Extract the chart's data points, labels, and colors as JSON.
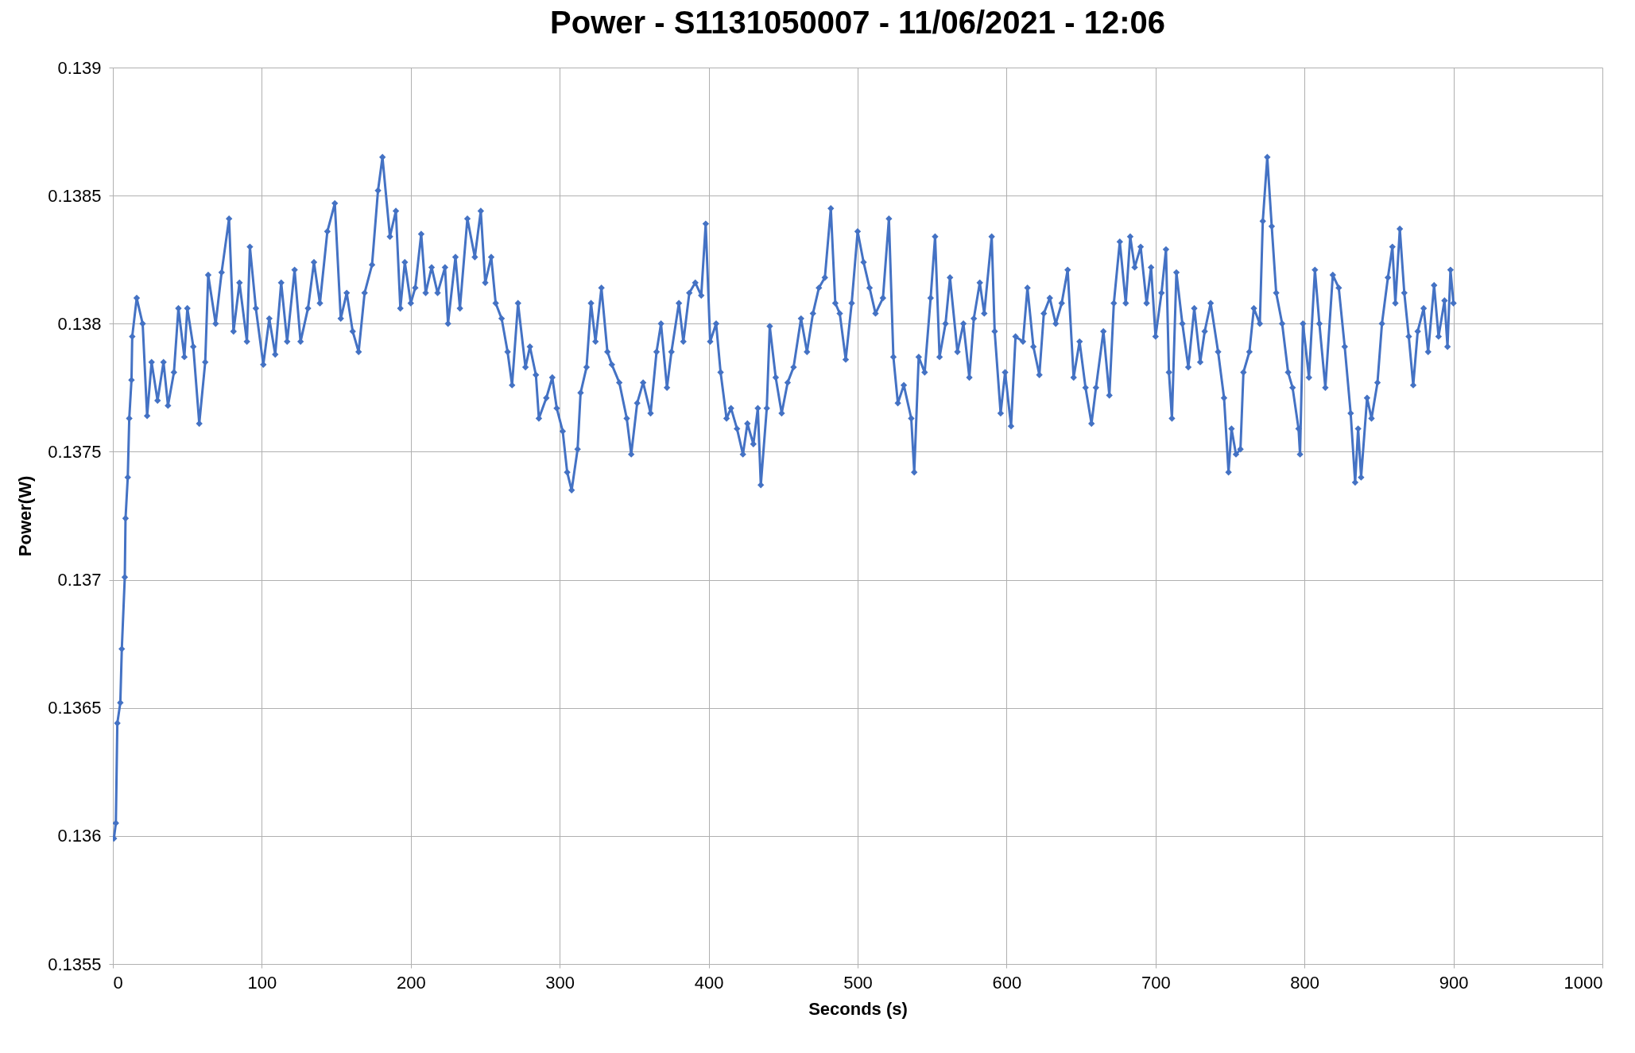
{
  "chart_data": {
    "type": "line",
    "title": "Power - S1131050007 - 11/06/2021 - 12:06",
    "xlabel": "Seconds (s)",
    "ylabel": "Power(W)",
    "x": [
      0.7,
      2,
      3,
      5,
      6,
      8,
      8.5,
      10,
      11,
      12.5,
      13,
      16,
      20,
      23,
      26,
      30,
      34,
      37,
      41,
      44,
      48,
      50,
      54,
      58,
      62,
      64,
      69,
      73,
      78,
      81,
      85,
      90,
      92,
      96,
      101,
      105,
      109,
      113,
      117,
      122,
      126,
      131,
      135,
      139,
      144,
      149,
      153,
      157,
      161,
      165,
      169,
      174,
      178,
      181,
      186,
      190,
      193,
      196,
      200,
      203,
      207,
      210,
      214,
      218,
      223,
      225,
      230,
      233,
      238,
      243,
      247,
      250,
      254,
      257,
      261,
      265,
      268,
      272,
      277,
      280,
      284,
      286,
      291,
      295,
      298,
      302,
      305,
      308,
      312,
      314,
      318,
      321,
      324,
      328,
      332,
      335,
      340,
      345,
      348,
      352,
      356,
      361,
      365,
      368,
      372,
      375,
      380,
      383,
      387,
      391,
      395,
      398,
      401,
      405,
      408,
      412,
      415,
      419,
      423,
      426,
      430,
      433,
      435,
      439,
      441,
      445,
      449,
      453,
      457,
      462,
      466,
      470,
      474,
      478,
      482,
      485,
      488,
      492,
      496,
      500,
      504,
      508,
      512,
      517,
      521,
      524,
      527,
      531,
      536,
      538,
      541,
      545,
      549,
      552,
      555,
      559,
      562,
      567,
      571,
      575,
      578,
      582,
      585,
      590,
      592,
      596,
      599,
      603,
      606,
      611,
      614,
      618,
      622,
      625,
      629,
      633,
      637,
      641,
      645,
      649,
      653,
      657,
      660,
      665,
      669,
      672,
      676,
      680,
      683,
      686,
      690,
      694,
      697,
      700,
      704,
      707,
      709,
      711,
      714,
      718,
      722,
      726,
      730,
      733,
      737,
      742,
      746,
      749,
      751,
      754,
      757,
      759,
      763,
      766,
      770,
      772,
      775,
      778,
      781,
      785,
      789,
      792,
      796,
      797,
      799,
      803,
      807,
      810,
      814,
      819,
      823,
      827,
      831,
      834,
      836,
      838,
      842,
      845,
      849,
      852,
      856,
      859,
      861,
      864,
      867,
      870,
      873,
      876,
      880,
      883,
      887,
      890,
      894,
      896,
      898,
      900
    ],
    "series": [
      {
        "color": "#4472c4",
        "values": [
          0.13599,
          0.13605,
          0.13644,
          0.13652,
          0.13673,
          0.13701,
          0.13724,
          0.1374,
          0.13763,
          0.13778,
          0.13795,
          0.1381,
          0.138,
          0.13764,
          0.13785,
          0.1377,
          0.13785,
          0.13768,
          0.13781,
          0.13806,
          0.13787,
          0.13806,
          0.13791,
          0.13761,
          0.13785,
          0.13819,
          0.138,
          0.1382,
          0.13841,
          0.13797,
          0.13816,
          0.13793,
          0.1383,
          0.13806,
          0.13784,
          0.13802,
          0.13788,
          0.13816,
          0.13793,
          0.13821,
          0.13793,
          0.13806,
          0.13824,
          0.13808,
          0.13836,
          0.13847,
          0.13802,
          0.13812,
          0.13797,
          0.13789,
          0.13812,
          0.13823,
          0.13852,
          0.13865,
          0.13834,
          0.13844,
          0.13806,
          0.13824,
          0.13808,
          0.13814,
          0.13835,
          0.13812,
          0.13822,
          0.13812,
          0.13822,
          0.138,
          0.13826,
          0.13806,
          0.13841,
          0.13826,
          0.13844,
          0.13816,
          0.13826,
          0.13808,
          0.13802,
          0.13789,
          0.13776,
          0.13808,
          0.13783,
          0.13791,
          0.1378,
          0.13763,
          0.13771,
          0.13779,
          0.13767,
          0.13758,
          0.13742,
          0.13735,
          0.13751,
          0.13773,
          0.13783,
          0.13808,
          0.13793,
          0.13814,
          0.13789,
          0.13784,
          0.13777,
          0.13763,
          0.13749,
          0.13769,
          0.13777,
          0.13765,
          0.13789,
          0.138,
          0.13775,
          0.13789,
          0.13808,
          0.13793,
          0.13812,
          0.13816,
          0.13811,
          0.13839,
          0.13793,
          0.138,
          0.13781,
          0.13763,
          0.13767,
          0.13759,
          0.13749,
          0.13761,
          0.13753,
          0.13767,
          0.13737,
          0.13767,
          0.13799,
          0.13779,
          0.13765,
          0.13777,
          0.13783,
          0.13802,
          0.13789,
          0.13804,
          0.13814,
          0.13818,
          0.13845,
          0.13808,
          0.13804,
          0.13786,
          0.13808,
          0.13836,
          0.13824,
          0.13814,
          0.13804,
          0.1381,
          0.13841,
          0.13787,
          0.13769,
          0.13776,
          0.13763,
          0.13742,
          0.13787,
          0.13781,
          0.1381,
          0.13834,
          0.13787,
          0.138,
          0.13818,
          0.13789,
          0.138,
          0.13779,
          0.13802,
          0.13816,
          0.13804,
          0.13834,
          0.13797,
          0.13765,
          0.13781,
          0.1376,
          0.13795,
          0.13793,
          0.13814,
          0.13791,
          0.1378,
          0.13804,
          0.1381,
          0.138,
          0.13808,
          0.13821,
          0.13779,
          0.13793,
          0.13775,
          0.13761,
          0.13775,
          0.13797,
          0.13772,
          0.13808,
          0.13832,
          0.13808,
          0.13834,
          0.13822,
          0.1383,
          0.13808,
          0.13822,
          0.13795,
          0.13812,
          0.13829,
          0.13781,
          0.13763,
          0.1382,
          0.138,
          0.13783,
          0.13806,
          0.13785,
          0.13797,
          0.13808,
          0.13789,
          0.13771,
          0.13742,
          0.13759,
          0.13749,
          0.13751,
          0.13781,
          0.13789,
          0.13806,
          0.138,
          0.1384,
          0.13865,
          0.13838,
          0.13812,
          0.138,
          0.13781,
          0.13775,
          0.13759,
          0.13749,
          0.138,
          0.13779,
          0.13821,
          0.138,
          0.13775,
          0.13819,
          0.13814,
          0.13791,
          0.13765,
          0.13738,
          0.13759,
          0.1374,
          0.13771,
          0.13763,
          0.13777,
          0.138,
          0.13818,
          0.1383,
          0.13808,
          0.13837,
          0.13812,
          0.13795,
          0.13776,
          0.13797,
          0.13806,
          0.13789,
          0.13815,
          0.13795,
          0.13809,
          0.13791,
          0.13821,
          0.13808
        ]
      }
    ],
    "xlim": [
      0,
      1000
    ],
    "xticks": [
      0,
      100,
      200,
      300,
      400,
      500,
      600,
      700,
      800,
      900,
      1000
    ],
    "ylim": [
      0.1355,
      0.139
    ],
    "yticks": [
      0.1355,
      0.136,
      0.1365,
      0.137,
      0.1375,
      0.138,
      0.1385,
      0.139
    ],
    "grid": true,
    "marker": "diamond",
    "line_style": "solid"
  }
}
